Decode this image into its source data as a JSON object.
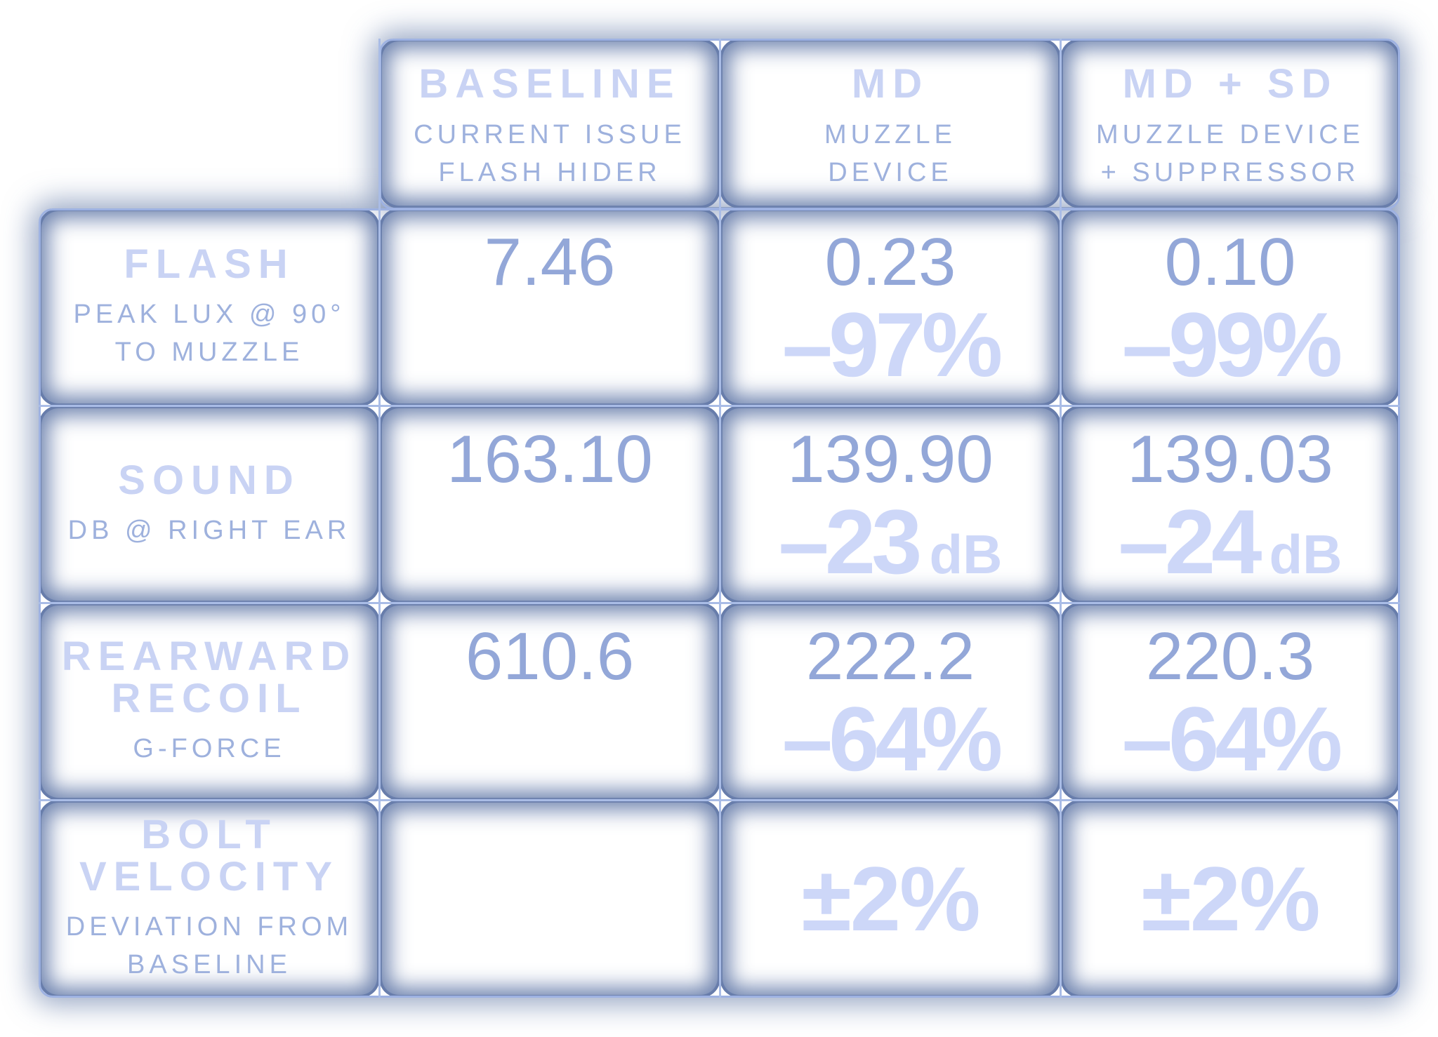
{
  "columns": [
    {
      "title": "BASELINE",
      "sub1": "CURRENT ISSUE",
      "sub2": "FLASH HIDER"
    },
    {
      "title": "MD",
      "sub1": "MUZZLE",
      "sub2": "DEVICE"
    },
    {
      "title": "MD + SD",
      "sub1": "MUZZLE DEVICE",
      "sub2": "+ SUPPRESSOR"
    }
  ],
  "rows": [
    {
      "title1": "FLASH",
      "title2": "",
      "sub1": "PEAK LUX @ 90°",
      "sub2": "TO MUZZLE",
      "baseline": "7.46",
      "md": {
        "value": "0.23",
        "delta": "–97%",
        "unit": ""
      },
      "mdsd": {
        "value": "0.10",
        "delta": "–99%",
        "unit": ""
      }
    },
    {
      "title1": "SOUND",
      "title2": "",
      "sub1": "DB @ RIGHT EAR",
      "sub2": "",
      "baseline": "163.10",
      "md": {
        "value": "139.90",
        "delta": "–23",
        "unit": "dB"
      },
      "mdsd": {
        "value": "139.03",
        "delta": "–24",
        "unit": "dB"
      }
    },
    {
      "title1": "REARWARD",
      "title2": "RECOIL",
      "sub1": "G-FORCE",
      "sub2": "",
      "baseline": "610.6",
      "md": {
        "value": "222.2",
        "delta": "–64%",
        "unit": ""
      },
      "mdsd": {
        "value": "220.3",
        "delta": "–64%",
        "unit": ""
      }
    },
    {
      "title1": "BOLT",
      "title2": "VELOCITY",
      "sub1": "DEVIATION FROM",
      "sub2": "BASELINE",
      "baseline": "",
      "md": {
        "value": "",
        "delta": "±2%",
        "unit": ""
      },
      "mdsd": {
        "value": "",
        "delta": "±2%",
        "unit": ""
      }
    }
  ]
}
